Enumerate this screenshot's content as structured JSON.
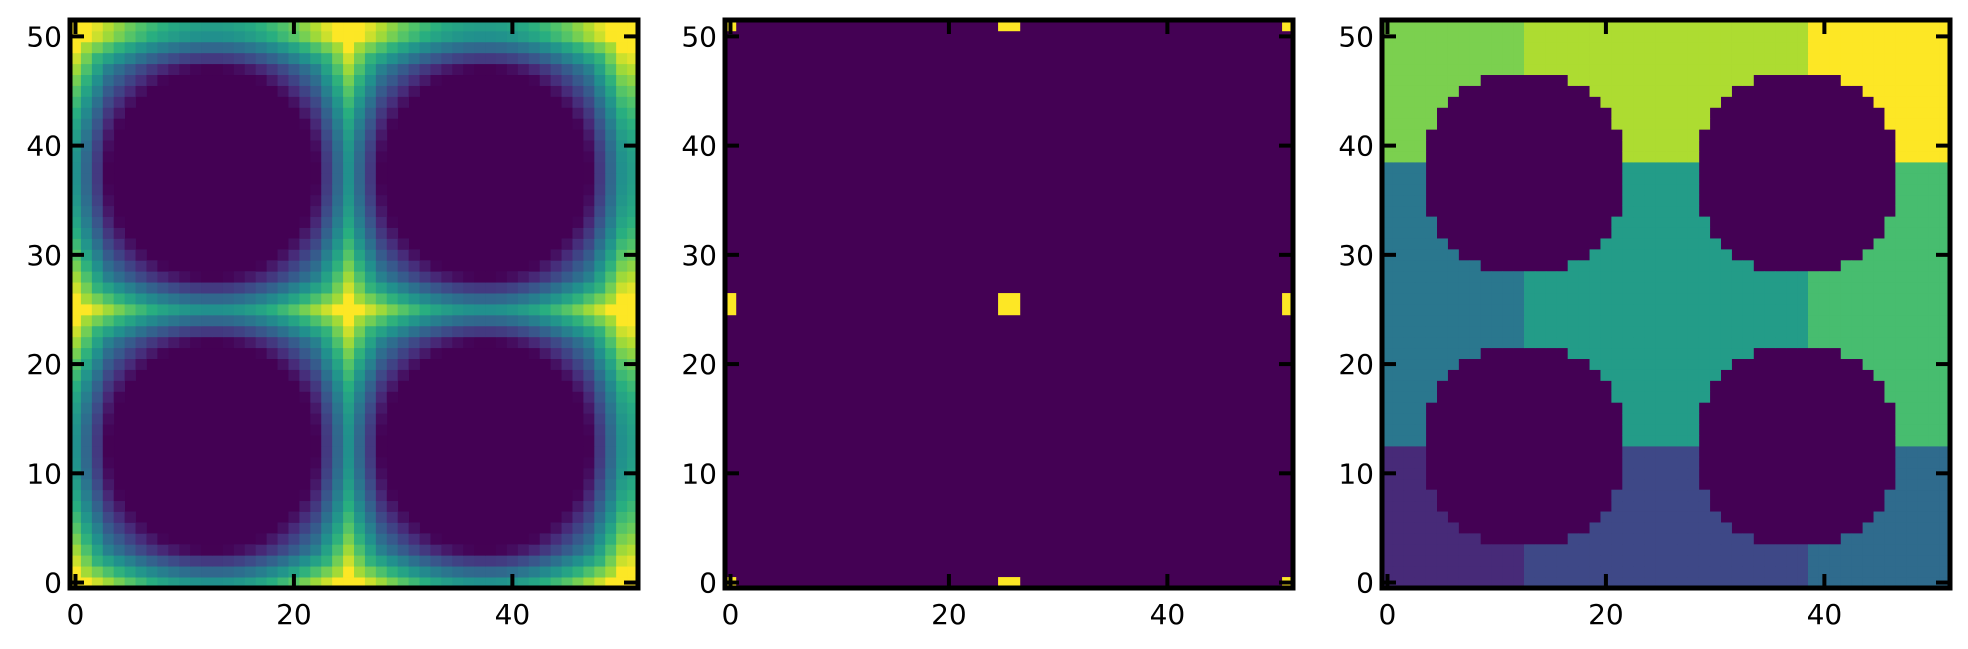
{
  "figure": {
    "background": "#ffffff"
  },
  "chart_data": [
    {
      "type": "heatmap",
      "variant": "distance-transform",
      "title": "",
      "xlabel": "",
      "ylabel": "",
      "grid_size": 52,
      "xlim": [
        0,
        51
      ],
      "ylim": [
        0,
        51
      ],
      "origin": "lower-left",
      "xticks": [
        0,
        20,
        40
      ],
      "yticks": [
        0,
        10,
        20,
        30,
        40,
        50
      ],
      "ticks_both_sides": true,
      "grid": false,
      "colormap": "viridis",
      "pore_centers": [
        [
          12.5,
          12.5
        ],
        [
          12.5,
          37.5
        ],
        [
          37.5,
          12.5
        ],
        [
          37.5,
          37.5
        ]
      ],
      "pore_radius": 9.5,
      "period": 25,
      "max_distance": 9
    },
    {
      "type": "heatmap",
      "variant": "peaks",
      "title": "",
      "xlabel": "",
      "ylabel": "",
      "grid_size": 52,
      "xlim": [
        0,
        51
      ],
      "ylim": [
        0,
        51
      ],
      "origin": "lower-left",
      "xticks": [
        0,
        20,
        40
      ],
      "yticks": [
        0,
        10,
        20,
        30,
        40,
        50
      ],
      "ticks_both_sides": true,
      "grid": false,
      "colormap": "viridis",
      "background_value": 0,
      "peak_value": 1,
      "peaks": [
        {
          "x": [
            25,
            26
          ],
          "y": [
            0,
            0
          ]
        },
        {
          "x": [
            25,
            26
          ],
          "y": [
            51,
            51
          ]
        },
        {
          "x": [
            0,
            0
          ],
          "y": [
            25,
            26
          ]
        },
        {
          "x": [
            51,
            51
          ],
          "y": [
            25,
            26
          ]
        },
        {
          "x": [
            25,
            26
          ],
          "y": [
            25,
            26
          ]
        },
        {
          "x": [
            0,
            0
          ],
          "y": [
            0,
            0
          ]
        },
        {
          "x": [
            51,
            51
          ],
          "y": [
            0,
            0
          ]
        },
        {
          "x": [
            0,
            0
          ],
          "y": [
            51,
            51
          ]
        },
        {
          "x": [
            51,
            51
          ],
          "y": [
            51,
            51
          ]
        }
      ]
    },
    {
      "type": "heatmap",
      "variant": "regions",
      "title": "",
      "xlabel": "",
      "ylabel": "",
      "grid_size": 52,
      "xlim": [
        0,
        51
      ],
      "ylim": [
        0,
        51
      ],
      "origin": "lower-left",
      "xticks": [
        0,
        20,
        40
      ],
      "yticks": [
        0,
        10,
        20,
        30,
        40,
        50
      ],
      "ticks_both_sides": true,
      "grid": false,
      "colormap": "viridis",
      "pore_centers": [
        [
          12.5,
          12.5
        ],
        [
          12.5,
          37.5
        ],
        [
          37.5,
          12.5
        ],
        [
          37.5,
          37.5
        ]
      ],
      "pore_radius": 9.5,
      "region_bounds": [
        13,
        39
      ],
      "region_levels": [
        [
          0.12,
          0.22,
          0.35
        ],
        [
          0.4,
          0.55,
          0.7
        ],
        [
          0.8,
          0.88,
          1.0
        ]
      ]
    }
  ]
}
